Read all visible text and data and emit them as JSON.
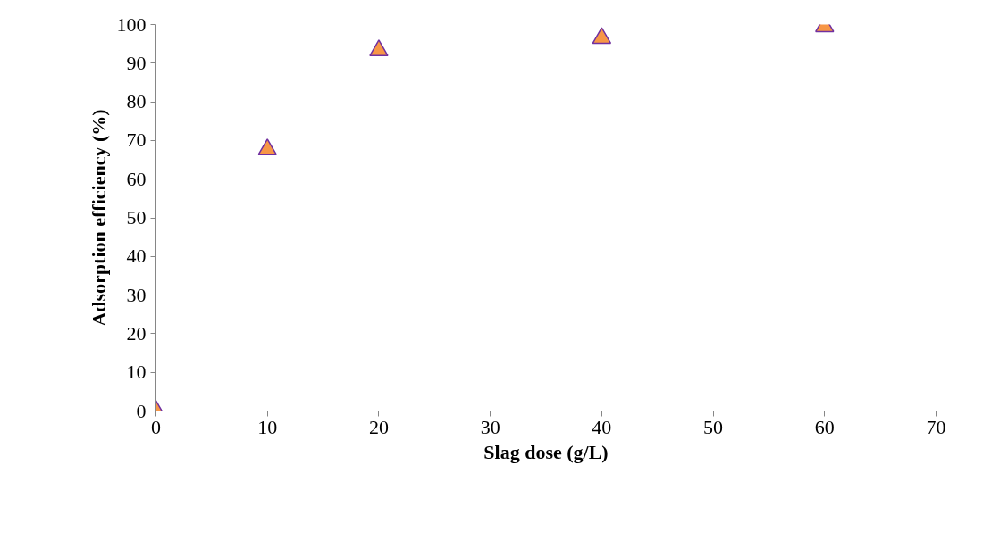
{
  "chart_data": {
    "type": "scatter",
    "xlabel": "Slag dose (g/L)",
    "ylabel": "Adsorption efficiency (%)",
    "x": [
      0,
      10,
      20,
      40,
      60
    ],
    "series": [
      {
        "color": "#f79646",
        "values": [
          0,
          67.7,
          93.3,
          96.5,
          99.5
        ]
      }
    ],
    "xlim": [
      0,
      70
    ],
    "ylim": [
      0,
      100
    ],
    "xticks": [
      0,
      10,
      20,
      30,
      40,
      50,
      60,
      70
    ],
    "yticks": [
      0,
      10,
      20,
      30,
      40,
      50,
      60,
      70,
      80,
      90,
      100
    ],
    "marker": "triangle",
    "grid": false
  }
}
